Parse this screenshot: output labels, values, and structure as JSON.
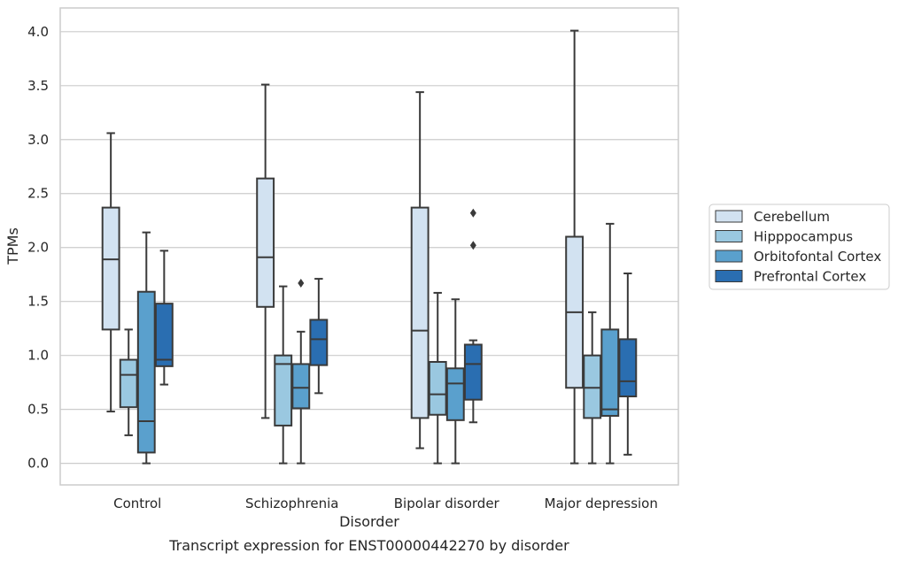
{
  "chart_data": {
    "type": "boxplot",
    "caption": "Transcript expression for ENST00000442270 by disorder",
    "xlabel": "Disorder",
    "ylabel": "TPMs",
    "ylim": [
      -0.2,
      4.22
    ],
    "yticks": [
      0.0,
      0.5,
      1.0,
      1.5,
      2.0,
      2.5,
      3.0,
      3.5,
      4.0
    ],
    "ytick_labels": [
      "0.0",
      "0.5",
      "1.0",
      "1.5",
      "2.0",
      "2.5",
      "3.0",
      "3.5",
      "4.0"
    ],
    "grid": "horizontal",
    "legend_position": "right",
    "categories": [
      "Control",
      "Schizophrenia",
      "Bipolar disorder",
      "Major depression"
    ],
    "series": [
      {
        "name": "Cerebellum",
        "color": "#d2e2f1",
        "boxes": [
          {
            "whisker_low": 0.48,
            "q1": 1.24,
            "median": 1.89,
            "q3": 2.37,
            "whisker_high": 3.06,
            "outliers": []
          },
          {
            "whisker_low": 0.42,
            "q1": 1.45,
            "median": 1.91,
            "q3": 2.64,
            "whisker_high": 3.51,
            "outliers": []
          },
          {
            "whisker_low": 0.14,
            "q1": 0.42,
            "median": 1.23,
            "q3": 2.37,
            "whisker_high": 3.44,
            "outliers": []
          },
          {
            "whisker_low": 0.0,
            "q1": 0.7,
            "median": 1.4,
            "q3": 2.1,
            "whisker_high": 4.01,
            "outliers": []
          }
        ]
      },
      {
        "name": "Hipppocampus",
        "color": "#9ac8e0",
        "boxes": [
          {
            "whisker_low": 0.26,
            "q1": 0.52,
            "median": 0.82,
            "q3": 0.96,
            "whisker_high": 1.24,
            "outliers": []
          },
          {
            "whisker_low": 0.0,
            "q1": 0.35,
            "median": 0.92,
            "q3": 1.0,
            "whisker_high": 1.64,
            "outliers": []
          },
          {
            "whisker_low": 0.0,
            "q1": 0.45,
            "median": 0.64,
            "q3": 0.94,
            "whisker_high": 1.58,
            "outliers": []
          },
          {
            "whisker_low": 0.0,
            "q1": 0.42,
            "median": 0.7,
            "q3": 1.0,
            "whisker_high": 1.4,
            "outliers": []
          }
        ]
      },
      {
        "name": "Orbitofontal Cortex",
        "color": "#5aa0cd",
        "boxes": [
          {
            "whisker_low": 0.0,
            "q1": 0.1,
            "median": 0.39,
            "q3": 1.59,
            "whisker_high": 2.14,
            "outliers": []
          },
          {
            "whisker_low": 0.0,
            "q1": 0.51,
            "median": 0.7,
            "q3": 0.92,
            "whisker_high": 1.22,
            "outliers": [
              1.67
            ]
          },
          {
            "whisker_low": 0.0,
            "q1": 0.4,
            "median": 0.74,
            "q3": 0.88,
            "whisker_high": 1.52,
            "outliers": []
          },
          {
            "whisker_low": 0.0,
            "q1": 0.44,
            "median": 0.5,
            "q3": 1.24,
            "whisker_high": 2.22,
            "outliers": []
          }
        ]
      },
      {
        "name": "Prefrontal Cortex",
        "color": "#2a6eb1",
        "boxes": [
          {
            "whisker_low": 0.73,
            "q1": 0.9,
            "median": 0.96,
            "q3": 1.48,
            "whisker_high": 1.97,
            "outliers": []
          },
          {
            "whisker_low": 0.65,
            "q1": 0.91,
            "median": 1.15,
            "q3": 1.33,
            "whisker_high": 1.71,
            "outliers": []
          },
          {
            "whisker_low": 0.38,
            "q1": 0.59,
            "median": 0.92,
            "q3": 1.1,
            "whisker_high": 1.14,
            "outliers": [
              2.02,
              2.32
            ]
          },
          {
            "whisker_low": 0.08,
            "q1": 0.62,
            "median": 0.76,
            "q3": 1.15,
            "whisker_high": 1.76,
            "outliers": []
          }
        ]
      }
    ]
  }
}
